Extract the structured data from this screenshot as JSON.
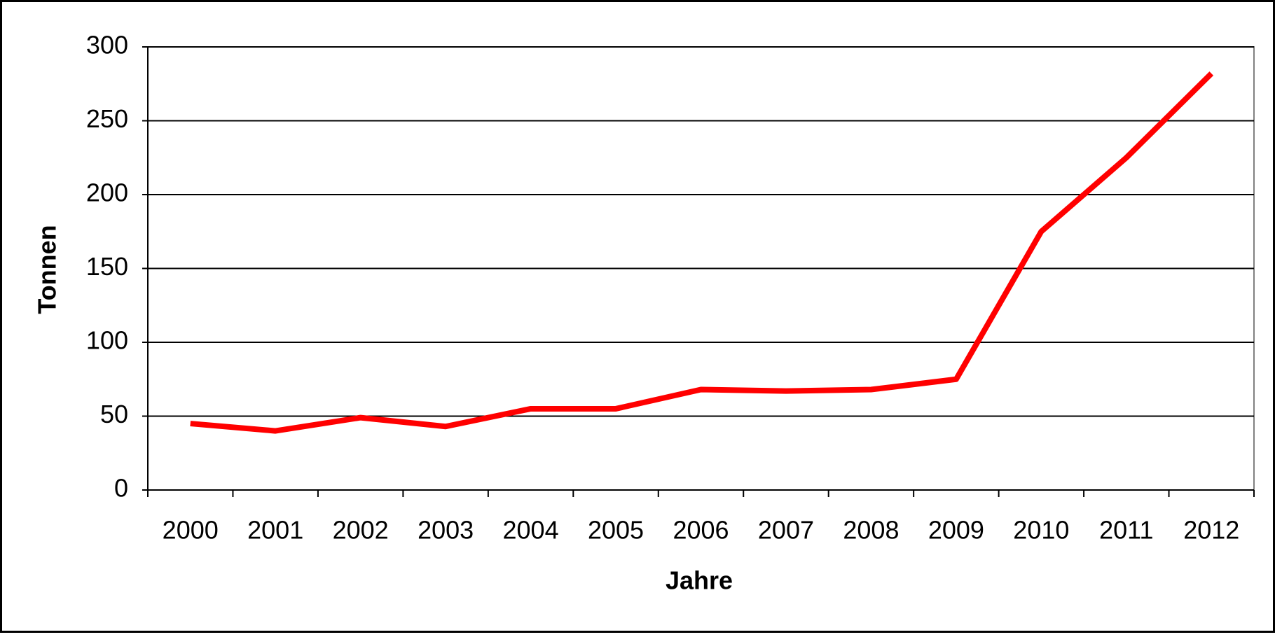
{
  "chart_data": {
    "type": "line",
    "x_label": "Jahre",
    "y_label": "Tonnen",
    "categories": [
      "2000",
      "2001",
      "2002",
      "2003",
      "2004",
      "2005",
      "2006",
      "2007",
      "2008",
      "2009",
      "2010",
      "2011",
      "2012"
    ],
    "values": [
      45,
      40,
      49,
      43,
      55,
      55,
      68,
      67,
      68,
      75,
      175,
      225,
      282
    ],
    "color": "#ff0000",
    "ylim": [
      0,
      300
    ],
    "yticks": [
      0,
      50,
      100,
      150,
      200,
      250,
      300
    ],
    "grid": true
  }
}
